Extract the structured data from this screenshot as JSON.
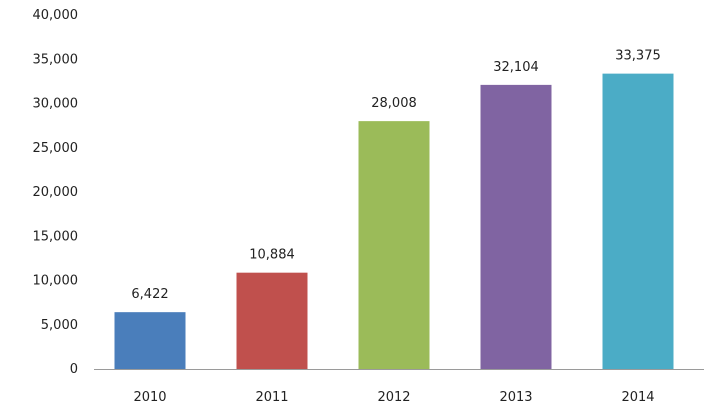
{
  "chart_data": {
    "type": "bar",
    "categories": [
      "2010",
      "2011",
      "2012",
      "2013",
      "2014"
    ],
    "values": [
      6422,
      10884,
      28008,
      32104,
      33375
    ],
    "data_labels": [
      "6,422",
      "10,884",
      "28,008",
      "32,104",
      "33,375"
    ],
    "colors": [
      "#4a7ebb",
      "#c0504d",
      "#9bbb59",
      "#8064a2",
      "#4bacc6"
    ],
    "ylim": [
      0,
      40000
    ],
    "yticks": [
      0,
      5000,
      10000,
      15000,
      20000,
      25000,
      30000,
      35000,
      40000
    ],
    "ytick_labels": [
      "0",
      "5,000",
      "10,000",
      "15,000",
      "20,000",
      "25,000",
      "30,000",
      "35,000",
      "40,000"
    ],
    "grid": false,
    "legend": "none"
  }
}
